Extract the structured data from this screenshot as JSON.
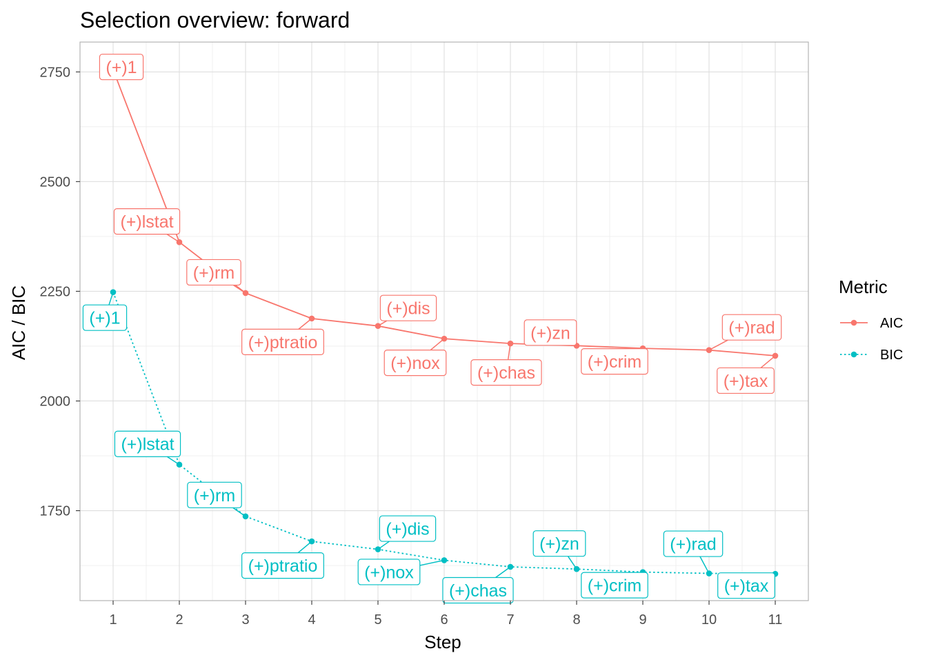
{
  "chart_data": {
    "type": "line",
    "title": "Selection overview: forward",
    "xlabel": "Step",
    "ylabel": "AIC / BIC",
    "x": [
      1,
      2,
      3,
      4,
      5,
      6,
      7,
      8,
      9,
      10,
      11
    ],
    "x_ticks": [
      1,
      2,
      3,
      4,
      5,
      6,
      7,
      8,
      9,
      10,
      11
    ],
    "y_ticks": [
      1750,
      2000,
      2250,
      2500,
      2750
    ],
    "xlim": [
      0.5,
      11.5
    ],
    "ylim": [
      1545,
      2818
    ],
    "grid": true,
    "legend": {
      "title": "Metric",
      "position": "right"
    },
    "series": [
      {
        "name": "AIC",
        "color": "#F8766D",
        "line_style": "solid",
        "values": [
          2755,
          2362,
          2246,
          2188,
          2171,
          2142,
          2131,
          2126,
          2120,
          2116,
          2103
        ],
        "labels": [
          "(+)1",
          "(+)lstat",
          "(+)rm",
          "(+)ptratio",
          "(+)dis",
          "(+)nox",
          "(+)chas",
          "(+)zn",
          "(+)crim",
          "(+)rad",
          "(+)tax"
        ]
      },
      {
        "name": "BIC",
        "color": "#00BFC4",
        "line_style": "dotted",
        "values": [
          2248,
          1855,
          1737,
          1680,
          1662,
          1637,
          1622,
          1617,
          1610,
          1607,
          1606
        ],
        "labels": [
          "(+)1",
          "(+)lstat",
          "(+)rm",
          "(+)ptratio",
          "(+)dis",
          "(+)nox",
          "(+)chas",
          "(+)zn",
          "(+)crim",
          "(+)rad",
          "(+)tax"
        ]
      }
    ]
  }
}
